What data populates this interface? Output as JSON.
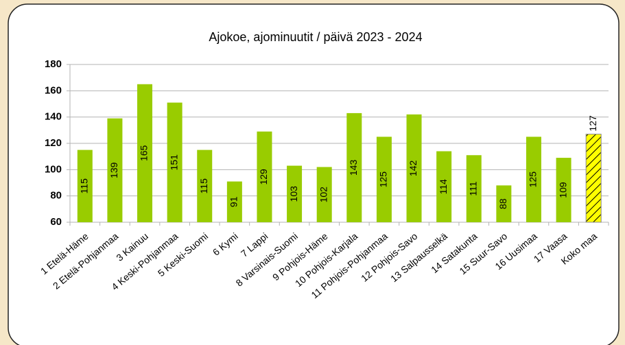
{
  "chart_data": {
    "type": "bar",
    "title": "Ajokoe, ajominuutit / päivä 2023 - 2024",
    "categories": [
      "1 Etelä-Häme",
      "2 Etelä-Pohjanmaa",
      "3 Kainuu",
      "4 Keski-Pohjanmaa",
      "5 Keski-Suomi",
      "6 Kymi",
      "7 Lappi",
      "8 Varsinais-Suomi",
      "9 Pohjois-Häme",
      "10 Pohjois-Karjala",
      "11 Pohjois-Pohjanmaa",
      "12 Pohjois-Savo",
      "13 Salpausselkä",
      "14 Satakunta",
      "15 Suur-Savo",
      "16 Uusimaa",
      "17 Vaasa",
      "Koko maa"
    ],
    "values": [
      115,
      139,
      165,
      151,
      115,
      91,
      129,
      103,
      102,
      143,
      125,
      142,
      114,
      111,
      88,
      125,
      109,
      127
    ],
    "color": "#99cc00",
    "colors": [
      "#99cc00",
      "#99cc00",
      "#99cc00",
      "#99cc00",
      "#99cc00",
      "#99cc00",
      "#99cc00",
      "#99cc00",
      "#99cc00",
      "#99cc00",
      "#99cc00",
      "#99cc00",
      "#99cc00",
      "#99cc00",
      "#99cc00",
      "#99cc00",
      "#99cc00",
      "#ffff00"
    ],
    "ylim": [
      60,
      180
    ],
    "yticks": [
      60,
      80,
      100,
      120,
      140,
      160,
      180
    ],
    "grid": true
  }
}
